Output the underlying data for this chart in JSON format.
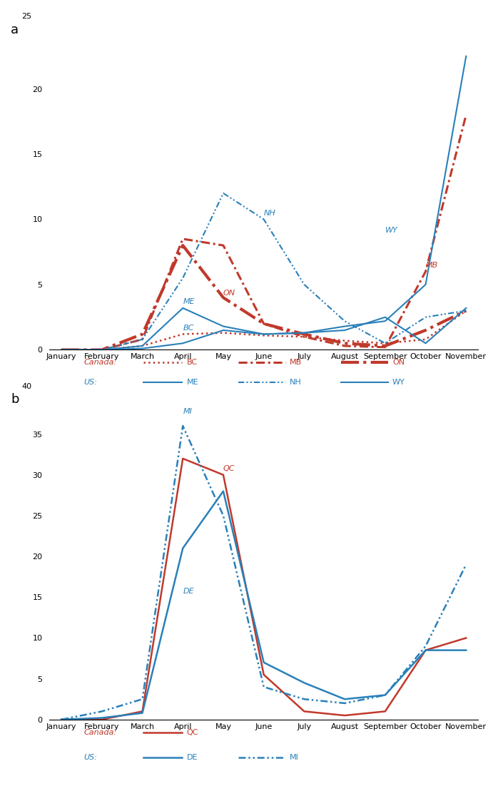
{
  "months": [
    "January",
    "February",
    "March",
    "April",
    "May",
    "June",
    "July",
    "August",
    "September",
    "October",
    "November"
  ],
  "panel_a": {
    "canada_BC": [
      0,
      0,
      0.3,
      1.2,
      1.3,
      1.1,
      1.0,
      0.7,
      0.5,
      0.8,
      3.0
    ],
    "canada_MB": [
      0,
      0,
      0.8,
      8.5,
      8.0,
      2.0,
      1.0,
      0.3,
      0.2,
      6.0,
      18.0
    ],
    "canada_ON": [
      0,
      0,
      1.2,
      8.0,
      4.0,
      2.0,
      1.2,
      0.5,
      0.3,
      1.5,
      3.0
    ],
    "us_ME": [
      0,
      0,
      0.3,
      3.2,
      1.8,
      1.2,
      1.3,
      1.5,
      2.5,
      0.5,
      3.2
    ],
    "us_NH": [
      0,
      0,
      0.8,
      5.5,
      12.0,
      10.0,
      5.0,
      2.2,
      0.5,
      2.5,
      3.0
    ],
    "us_WY": [
      0,
      0,
      0.1,
      0.5,
      1.5,
      1.2,
      1.3,
      1.8,
      2.2,
      5.0,
      22.5
    ],
    "ylim": [
      0,
      25
    ],
    "yticks": [
      0,
      5,
      10,
      15,
      20,
      25
    ],
    "ann_BC": {
      "xi": 3,
      "y": 1.5,
      "text": "BC"
    },
    "ann_MB": {
      "xi": 9,
      "y": 6.3,
      "text": "MB"
    },
    "ann_ON": {
      "xi": 4,
      "y": 4.2,
      "text": "ON"
    },
    "ann_ME": {
      "xi": 3,
      "y": 3.5,
      "text": "ME"
    },
    "ann_NH": {
      "xi": 5,
      "y": 10.3,
      "text": "NH"
    },
    "ann_WY": {
      "xi": 8,
      "y": 9.0,
      "text": "WY"
    }
  },
  "panel_b": {
    "canada_QC": [
      0,
      0,
      1.0,
      32.0,
      30.0,
      5.5,
      1.0,
      0.5,
      1.0,
      8.5,
      10.0
    ],
    "us_DE": [
      0,
      0.2,
      0.8,
      21.0,
      28.0,
      7.0,
      4.5,
      2.5,
      3.0,
      8.5,
      8.5
    ],
    "us_MI": [
      0,
      1.0,
      2.5,
      36.0,
      25.0,
      4.0,
      2.5,
      2.0,
      3.0,
      9.0,
      19.0
    ],
    "ylim": [
      0,
      40
    ],
    "yticks": [
      0,
      5,
      10,
      15,
      20,
      25,
      30,
      35,
      40
    ],
    "ann_QC": {
      "xi": 4,
      "y": 30.5,
      "text": "QC"
    },
    "ann_DE": {
      "xi": 3,
      "y": 15.5,
      "text": "DE"
    },
    "ann_MI": {
      "xi": 3,
      "y": 37.5,
      "text": "MI"
    }
  },
  "colors": {
    "canada_red": "#C0392B",
    "us_blue": "#2980B9"
  }
}
